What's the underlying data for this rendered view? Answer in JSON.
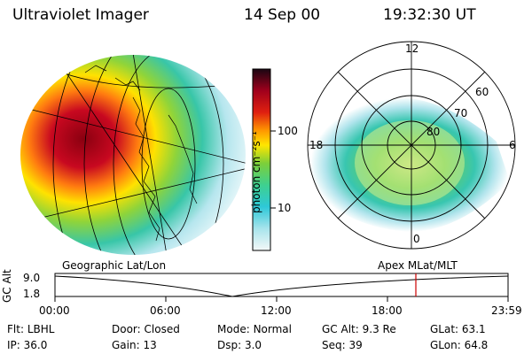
{
  "header": {
    "instrument": "Ultraviolet Imager",
    "date": "14 Sep 00",
    "time": "19:32:30 UT"
  },
  "colorbar": {
    "unit_label": "photon cm⁻²s⁻¹",
    "ticks": [
      {
        "label": "100",
        "value": 100
      },
      {
        "label": "10",
        "value": 10
      }
    ]
  },
  "polar_plot": {
    "mlt_labels": {
      "top": "12",
      "left": "18",
      "right": "6",
      "bottom": "0"
    },
    "lat_labels": [
      "60",
      "70",
      "80"
    ]
  },
  "map_labels": {
    "left": "Geographic Lat/Lon",
    "right": "Apex MLat/MLT"
  },
  "timeline": {
    "axis_label": "GC Alt",
    "y_ticks": [
      "9.0",
      "1.8"
    ],
    "x_ticks": [
      "00:00",
      "06:00",
      "12:00",
      "18:00",
      "23:59"
    ],
    "marker_time": "19:32:30"
  },
  "info": {
    "row1": [
      {
        "label": "Flt:",
        "value": "LBHL"
      },
      {
        "label": "Door:",
        "value": "Closed"
      },
      {
        "label": "Mode:",
        "value": "Normal"
      },
      {
        "label": "GC Alt:",
        "value": "9.3 Re"
      },
      {
        "label": "GLat:",
        "value": "63.1"
      }
    ],
    "row2": [
      {
        "label": "IP:",
        "value": "36.0"
      },
      {
        "label": "Gain:",
        "value": "13"
      },
      {
        "label": "Dsp:",
        "value": "3.0"
      },
      {
        "label": "Seq:",
        "value": "39"
      },
      {
        "label": "GLon:",
        "value": "64.8"
      }
    ]
  },
  "colors": {
    "ink": "#000000",
    "marker": "#cc0000",
    "bar_dark": "#2a0a14",
    "bar_red": "#c00018",
    "bar_orange": "#ff9800",
    "bar_yellow": "#ffe600",
    "bar_green": "#7ccf3a",
    "bar_cyan": "#2ec8d8",
    "bar_pale": "#e8f4f8"
  }
}
